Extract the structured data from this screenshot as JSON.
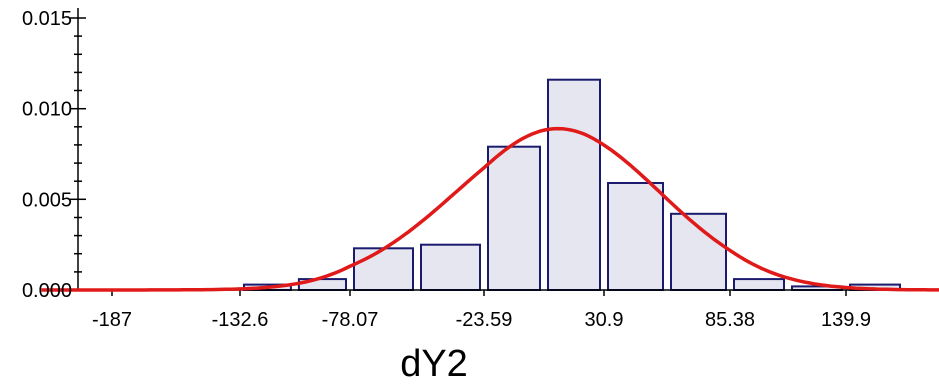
{
  "chart_data": {
    "type": "bar",
    "title": "",
    "xlabel": "dY2",
    "ylabel": "",
    "x_tick_labels": [
      "-187",
      "-132.6",
      "-78.07",
      "-23.59",
      "30.9",
      "85.38",
      "139.9"
    ],
    "x_tick_values": [
      -187,
      -132.6,
      -78.07,
      -23.59,
      30.9,
      85.38,
      139.9
    ],
    "y_tick_labels": [
      "0.000",
      "0.005",
      "0.010",
      "0.015"
    ],
    "y_tick_values": [
      0.0,
      0.005,
      0.01,
      0.015
    ],
    "xlim": [
      -217,
      225
    ],
    "ylim": [
      0,
      0.0155
    ],
    "bin_width": 27.24,
    "bins": [
      {
        "x0": -132.6,
        "x1": -105.36,
        "density": 0.0003
      },
      {
        "x0": -105.36,
        "x1": -78.07,
        "density": 0.0006
      },
      {
        "x0": -78.07,
        "x1": -50.83,
        "density": 0.0023
      },
      {
        "x0": -50.83,
        "x1": -23.59,
        "density": 0.0025
      },
      {
        "x0": -23.59,
        "x1": 3.65,
        "density": 0.0079
      },
      {
        "x0": 3.65,
        "x1": 30.9,
        "density": 0.0116
      },
      {
        "x0": 30.9,
        "x1": 58.14,
        "density": 0.0059
      },
      {
        "x0": 58.14,
        "x1": 85.38,
        "density": 0.0042
      },
      {
        "x0": 85.38,
        "x1": 112.64,
        "density": 0.0006
      },
      {
        "x0": 112.64,
        "x1": 139.9,
        "density": 0.0002
      },
      {
        "x0": 139.9,
        "x1": 167.14,
        "density": 0.0003
      }
    ],
    "fit_curve": {
      "type": "normal",
      "mean": 10,
      "sd": 45,
      "peak": 0.0089
    },
    "grid": false,
    "bar_fill": "#e6e6f0",
    "bar_stroke": "#1a1a6e",
    "curve_color": "#e01919"
  }
}
